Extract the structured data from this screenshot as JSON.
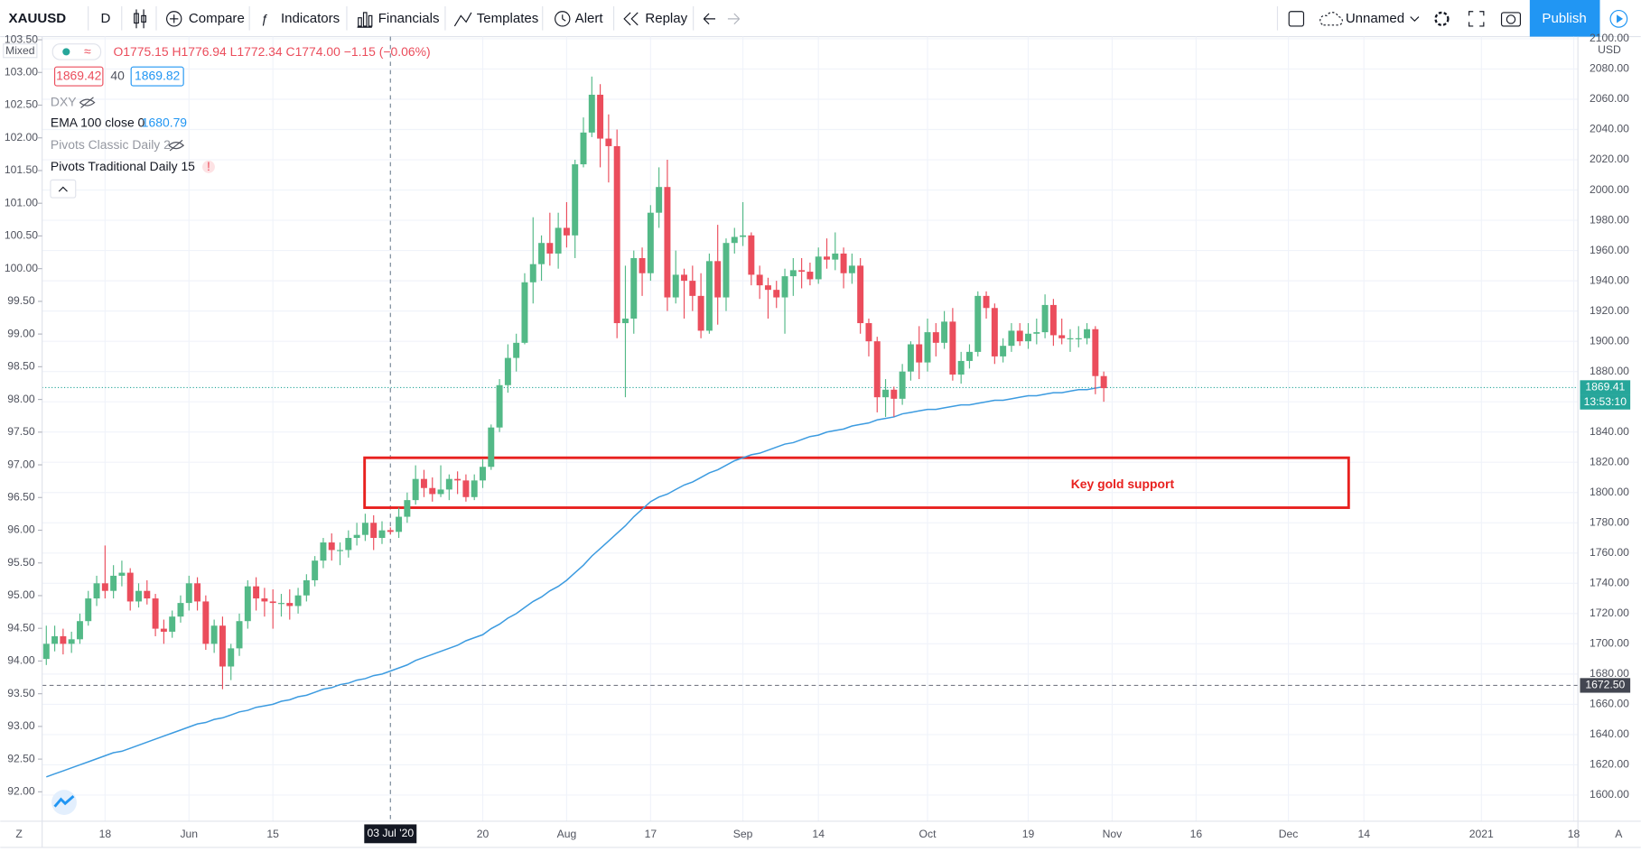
{
  "toolbar": {
    "symbol": "XAUUSD",
    "interval": "D",
    "compare": "Compare",
    "indicators": "Indicators",
    "financials": "Financials",
    "templates": "Templates",
    "alert": "Alert",
    "replay": "Replay",
    "layout_name": "Unnamed",
    "publish": "Publish"
  },
  "chart_data": {
    "type": "candlestick",
    "up_color": "#53b987",
    "down_color": "#eb4d5c",
    "legend": {
      "open": "O1775.15",
      "high": "H1776.94",
      "low": "L1772.34",
      "close": "C1774.00",
      "change": "−1.15 (−0.06%)",
      "bid": "1869.42",
      "spread": "40",
      "ask": "1869.82"
    },
    "indicators": {
      "dxy": "DXY",
      "pivots_classic": "Pivots Classic Daily 2",
      "pivots_traditional": "Pivots Traditional Daily 15",
      "warning": "!"
    },
    "left_axis_mode": "Mixed",
    "axis_unit": "USD",
    "scale_left_button": "Z",
    "scale_right_button": "A",
    "ylim": [
      1582.7,
      2102.8
    ],
    "yticks": [
      {
        "value": 1600,
        "label": "1600.00"
      },
      {
        "value": 1620,
        "label": "1620.00"
      },
      {
        "value": 1640,
        "label": "1640.00"
      },
      {
        "value": 1660,
        "label": "1660.00"
      },
      {
        "value": 1680,
        "label": "1680.00"
      },
      {
        "value": 1700,
        "label": "1700.00"
      },
      {
        "value": 1720,
        "label": "1720.00"
      },
      {
        "value": 1740,
        "label": "1740.00"
      },
      {
        "value": 1760,
        "label": "1760.00"
      },
      {
        "value": 1780,
        "label": "1780.00"
      },
      {
        "value": 1800,
        "label": "1800.00"
      },
      {
        "value": 1820,
        "label": "1820.00"
      },
      {
        "value": 1840,
        "label": "1840.00"
      },
      {
        "value": 1860,
        "label": "1860.00"
      },
      {
        "value": 1880,
        "label": "1880.00"
      },
      {
        "value": 1900,
        "label": "1900.00"
      },
      {
        "value": 1920,
        "label": "1920.00"
      },
      {
        "value": 1940,
        "label": "1940.00"
      },
      {
        "value": 1960,
        "label": "1960.00"
      },
      {
        "value": 1980,
        "label": "1980.00"
      },
      {
        "value": 2000,
        "label": "2000.00"
      },
      {
        "value": 2020,
        "label": "2020.00"
      },
      {
        "value": 2040,
        "label": "2040.00"
      },
      {
        "value": 2060,
        "label": "2060.00"
      },
      {
        "value": 2080,
        "label": "2080.00"
      },
      {
        "value": 2100,
        "label": "2100.00"
      }
    ],
    "ylim_left": [
      91.55,
      103.58
    ],
    "yticks_left": [
      {
        "value": 92,
        "label": "92.00"
      },
      {
        "value": 92.5,
        "label": "92.50"
      },
      {
        "value": 93,
        "label": "93.00"
      },
      {
        "value": 93.5,
        "label": "93.50"
      },
      {
        "value": 94,
        "label": "94.00"
      },
      {
        "value": 94.5,
        "label": "94.50"
      },
      {
        "value": 95,
        "label": "95.00"
      },
      {
        "value": 95.5,
        "label": "95.50"
      },
      {
        "value": 96,
        "label": "96.00"
      },
      {
        "value": 96.5,
        "label": "96.50"
      },
      {
        "value": 97,
        "label": "97.00"
      },
      {
        "value": 97.5,
        "label": "97.50"
      },
      {
        "value": 98,
        "label": "98.00"
      },
      {
        "value": 98.5,
        "label": "98.50"
      },
      {
        "value": 99,
        "label": "99.00"
      },
      {
        "value": 99.5,
        "label": "99.50"
      },
      {
        "value": 100,
        "label": "100.00"
      },
      {
        "value": 100.5,
        "label": "100.50"
      },
      {
        "value": 101,
        "label": "101.00"
      },
      {
        "value": 101.5,
        "label": "101.50"
      },
      {
        "value": 102,
        "label": "102.00"
      },
      {
        "value": 102.5,
        "label": "102.50"
      },
      {
        "value": 103,
        "label": "103.00"
      },
      {
        "value": 103.5,
        "label": "103.50"
      }
    ],
    "last_price": 1869.41,
    "last_price_color": "#26a69a",
    "countdown": "13:53:10",
    "alert_line": {
      "value": 1672.5,
      "label": "1672.50"
    },
    "annotation": {
      "text": "Key gold support",
      "price_range": [
        1790,
        1823
      ],
      "color": "#e8211f"
    },
    "categories": [
      null,
      null,
      null,
      null,
      null,
      null,
      null,
      "18",
      null,
      null,
      null,
      null,
      null,
      null,
      null,
      null,
      null,
      "Jun",
      null,
      null,
      null,
      null,
      null,
      null,
      null,
      null,
      null,
      "15",
      null,
      null,
      null,
      null,
      null,
      null,
      null,
      null,
      null,
      null,
      null,
      null,
      null,
      "03 Jul '20",
      null,
      null,
      null,
      null,
      null,
      null,
      null,
      null,
      null,
      null,
      "20",
      null,
      null,
      null,
      null,
      null,
      null,
      null,
      null,
      null,
      "Aug",
      null,
      null,
      null,
      null,
      null,
      null,
      null,
      null,
      null,
      "17",
      null,
      null,
      null,
      null,
      null,
      null,
      null,
      null,
      null,
      null,
      "Sep",
      null,
      null,
      null,
      null,
      null,
      null,
      null,
      null,
      "14",
      null,
      null,
      null,
      null,
      null,
      null,
      null,
      null,
      null,
      null,
      null,
      null,
      "Oct",
      null,
      null,
      null,
      null,
      null,
      null,
      null,
      null,
      null,
      null,
      null,
      "19",
      null,
      null,
      null,
      null,
      null,
      null,
      null,
      null,
      null,
      "Nov",
      null,
      null,
      null,
      null,
      null,
      null,
      null,
      null,
      null,
      "16",
      null,
      null,
      null,
      null,
      null,
      null,
      null,
      null,
      null,
      null,
      "Dec",
      null,
      null,
      null,
      null,
      null,
      null,
      null,
      null,
      "14",
      null,
      null,
      null,
      null,
      null,
      null,
      null,
      null,
      null,
      null,
      null,
      null,
      null,
      "2021",
      null,
      null,
      null,
      null,
      null,
      null,
      null,
      null,
      null,
      null,
      "18"
    ],
    "ohlc": [
      [
        1690,
        1712,
        1686,
        1700
      ],
      [
        1700,
        1712,
        1695,
        1705
      ],
      [
        1705,
        1710,
        1693,
        1700
      ],
      [
        1700,
        1708,
        1694,
        1703
      ],
      [
        1703,
        1720,
        1700,
        1715
      ],
      [
        1715,
        1735,
        1712,
        1730
      ],
      [
        1730,
        1745,
        1725,
        1740
      ],
      [
        1740,
        1765,
        1730,
        1735
      ],
      [
        1735,
        1752,
        1730,
        1745
      ],
      [
        1745,
        1755,
        1738,
        1747
      ],
      [
        1747,
        1750,
        1722,
        1728
      ],
      [
        1728,
        1740,
        1724,
        1735
      ],
      [
        1735,
        1742,
        1726,
        1730
      ],
      [
        1730,
        1733,
        1705,
        1710
      ],
      [
        1710,
        1716,
        1700,
        1708
      ],
      [
        1708,
        1722,
        1704,
        1718
      ],
      [
        1718,
        1732,
        1714,
        1727
      ],
      [
        1727,
        1745,
        1722,
        1740
      ],
      [
        1740,
        1744,
        1722,
        1728
      ],
      [
        1728,
        1732,
        1696,
        1700
      ],
      [
        1700,
        1716,
        1694,
        1712
      ],
      [
        1712,
        1718,
        1670,
        1685
      ],
      [
        1685,
        1700,
        1676,
        1697
      ],
      [
        1697,
        1720,
        1692,
        1715
      ],
      [
        1715,
        1742,
        1710,
        1738
      ],
      [
        1738,
        1744,
        1722,
        1730
      ],
      [
        1730,
        1737,
        1718,
        1728
      ],
      [
        1728,
        1736,
        1710,
        1727
      ],
      [
        1727,
        1733,
        1718,
        1727
      ],
      [
        1727,
        1736,
        1716,
        1725
      ],
      [
        1725,
        1737,
        1720,
        1732
      ],
      [
        1732,
        1746,
        1728,
        1742
      ],
      [
        1742,
        1758,
        1738,
        1755
      ],
      [
        1755,
        1770,
        1750,
        1767
      ],
      [
        1767,
        1773,
        1755,
        1762
      ],
      [
        1762,
        1767,
        1752,
        1762
      ],
      [
        1762,
        1775,
        1757,
        1770
      ],
      [
        1770,
        1780,
        1765,
        1772
      ],
      [
        1772,
        1786,
        1768,
        1780
      ],
      [
        1780,
        1785,
        1762,
        1770
      ],
      [
        1770,
        1781,
        1766,
        1775
      ],
      [
        1775.15,
        1776.94,
        1772.34,
        1774
      ],
      [
        1774,
        1790,
        1770,
        1784
      ],
      [
        1784,
        1800,
        1780,
        1795
      ],
      [
        1795,
        1818,
        1792,
        1809
      ],
      [
        1809,
        1815,
        1797,
        1803
      ],
      [
        1803,
        1810,
        1794,
        1799
      ],
      [
        1799,
        1818,
        1797,
        1802
      ],
      [
        1802,
        1812,
        1795,
        1809
      ],
      [
        1809,
        1814,
        1799,
        1808
      ],
      [
        1808,
        1812,
        1794,
        1797
      ],
      [
        1797,
        1812,
        1795,
        1808
      ],
      [
        1808,
        1822,
        1803,
        1817
      ],
      [
        1817,
        1845,
        1815,
        1843
      ],
      [
        1843,
        1875,
        1840,
        1871
      ],
      [
        1871,
        1898,
        1866,
        1889
      ],
      [
        1889,
        1905,
        1880,
        1899
      ],
      [
        1899,
        1945,
        1898,
        1939
      ],
      [
        1939,
        1982,
        1925,
        1951
      ],
      [
        1951,
        1970,
        1940,
        1965
      ],
      [
        1965,
        1985,
        1950,
        1958
      ],
      [
        1958,
        1985,
        1948,
        1975
      ],
      [
        1975,
        1992,
        1962,
        1970
      ],
      [
        1970,
        2020,
        1955,
        2017
      ],
      [
        2017,
        2048,
        2015,
        2038
      ],
      [
        2038,
        2075,
        2035,
        2063
      ],
      [
        2063,
        2070,
        2015,
        2034
      ],
      [
        2034,
        2050,
        2005,
        2029
      ],
      [
        2029,
        2040,
        1902,
        1912
      ],
      [
        1912,
        1950,
        1863,
        1915
      ],
      [
        1915,
        1960,
        1905,
        1955
      ],
      [
        1955,
        1962,
        1930,
        1945
      ],
      [
        1945,
        1990,
        1940,
        1985
      ],
      [
        1985,
        2015,
        1975,
        2002
      ],
      [
        2002,
        2020,
        1920,
        1929
      ],
      [
        1929,
        1960,
        1925,
        1944
      ],
      [
        1944,
        1948,
        1915,
        1940
      ],
      [
        1940,
        1950,
        1920,
        1930
      ],
      [
        1930,
        1945,
        1902,
        1907
      ],
      [
        1907,
        1958,
        1905,
        1953
      ],
      [
        1953,
        1977,
        1911,
        1929
      ],
      [
        1929,
        1968,
        1920,
        1965
      ],
      [
        1965,
        1975,
        1958,
        1969
      ],
      [
        1969,
        1992,
        1963,
        1970
      ],
      [
        1970,
        1972,
        1937,
        1944
      ],
      [
        1944,
        1950,
        1928,
        1937
      ],
      [
        1937,
        1942,
        1915,
        1934
      ],
      [
        1934,
        1940,
        1922,
        1929
      ],
      [
        1929,
        1948,
        1905,
        1943
      ],
      [
        1943,
        1955,
        1930,
        1947
      ],
      [
        1947,
        1955,
        1935,
        1946
      ],
      [
        1946,
        1952,
        1937,
        1941
      ],
      [
        1941,
        1962,
        1938,
        1956
      ],
      [
        1956,
        1968,
        1948,
        1954
      ],
      [
        1954,
        1972,
        1947,
        1958
      ],
      [
        1958,
        1962,
        1935,
        1945
      ],
      [
        1945,
        1958,
        1938,
        1950
      ],
      [
        1950,
        1955,
        1905,
        1912
      ],
      [
        1912,
        1915,
        1890,
        1900
      ],
      [
        1900,
        1903,
        1853,
        1863
      ],
      [
        1863,
        1875,
        1850,
        1868
      ],
      [
        1868,
        1870,
        1850,
        1862
      ],
      [
        1862,
        1885,
        1858,
        1880
      ],
      [
        1880,
        1900,
        1874,
        1898
      ],
      [
        1898,
        1910,
        1875,
        1886
      ],
      [
        1886,
        1915,
        1880,
        1906
      ],
      [
        1906,
        1912,
        1890,
        1899
      ],
      [
        1899,
        1920,
        1895,
        1913
      ],
      [
        1913,
        1922,
        1874,
        1878
      ],
      [
        1878,
        1893,
        1872,
        1887
      ],
      [
        1887,
        1898,
        1882,
        1893
      ],
      [
        1893,
        1933,
        1890,
        1930
      ],
      [
        1930,
        1933,
        1915,
        1922
      ],
      [
        1922,
        1925,
        1885,
        1890
      ],
      [
        1890,
        1902,
        1886,
        1897
      ],
      [
        1897,
        1912,
        1893,
        1907
      ],
      [
        1907,
        1912,
        1897,
        1900
      ],
      [
        1900,
        1912,
        1895,
        1905
      ],
      [
        1905,
        1915,
        1898,
        1906
      ],
      [
        1906,
        1931,
        1902,
        1924
      ],
      [
        1924,
        1928,
        1897,
        1904
      ],
      [
        1904,
        1915,
        1898,
        1902
      ],
      [
        1902,
        1908,
        1893,
        1902
      ],
      [
        1902,
        1910,
        1896,
        1902
      ],
      [
        1902,
        1912,
        1898,
        1908
      ],
      [
        1908,
        1910,
        1865,
        1877
      ],
      [
        1877,
        1880,
        1860,
        1869
      ],
      null,
      null,
      null,
      null,
      null,
      null,
      null,
      null,
      null,
      null,
      null,
      null,
      null,
      null,
      null,
      null,
      null,
      null,
      null,
      null,
      null,
      null,
      null,
      null,
      null,
      null,
      null,
      null,
      null,
      null,
      null,
      null,
      null,
      null,
      null,
      null,
      null,
      null,
      null,
      null,
      null,
      null,
      null,
      null,
      null,
      null,
      null,
      null,
      null,
      null,
      null,
      null,
      null,
      null,
      null,
      null
    ],
    "ema": {
      "name": "EMA 100 close 0",
      "value_label": "1680.79",
      "color": "#3c9be0",
      "values": [
        1612,
        1614,
        1616,
        1618,
        1620,
        1622,
        1624,
        1626,
        1628,
        1629,
        1631,
        1633,
        1635,
        1637,
        1639,
        1641,
        1643,
        1645,
        1647,
        1648,
        1650,
        1651,
        1653,
        1655,
        1656,
        1658,
        1659,
        1660,
        1662,
        1663,
        1665,
        1666,
        1668,
        1670,
        1671,
        1673,
        1674,
        1676,
        1677,
        1679,
        1680,
        1682,
        1684,
        1686,
        1689,
        1691,
        1693,
        1695,
        1697,
        1699,
        1702,
        1704,
        1706,
        1710,
        1713,
        1717,
        1720,
        1724,
        1728,
        1731,
        1735,
        1738,
        1742,
        1747,
        1752,
        1758,
        1763,
        1768,
        1773,
        1778,
        1784,
        1789,
        1794,
        1797,
        1799,
        1802,
        1805,
        1807,
        1810,
        1813,
        1815,
        1818,
        1821,
        1823,
        1825,
        1826,
        1828,
        1830,
        1832,
        1833,
        1835,
        1837,
        1838,
        1840,
        1841,
        1842,
        1844,
        1845,
        1846,
        1848,
        1849,
        1850,
        1852,
        1853,
        1854,
        1855,
        1855,
        1856,
        1857,
        1858,
        1858,
        1859,
        1860,
        1861,
        1861,
        1862,
        1863,
        1864,
        1864,
        1865,
        1866,
        1866,
        1867,
        1868,
        1868,
        1869,
        1870,
        null,
        null,
        null,
        null,
        null,
        null,
        null,
        null,
        null,
        null,
        null,
        null,
        null,
        null,
        null,
        null,
        null,
        null,
        null,
        null,
        null,
        null,
        null,
        null,
        null,
        null,
        null,
        null,
        null,
        null,
        null,
        null,
        null,
        null,
        null,
        null,
        null,
        null,
        null,
        null,
        null,
        null,
        null,
        null,
        null,
        null,
        null,
        null,
        null,
        null,
        null,
        null,
        null,
        null,
        null,
        null
      ]
    }
  }
}
